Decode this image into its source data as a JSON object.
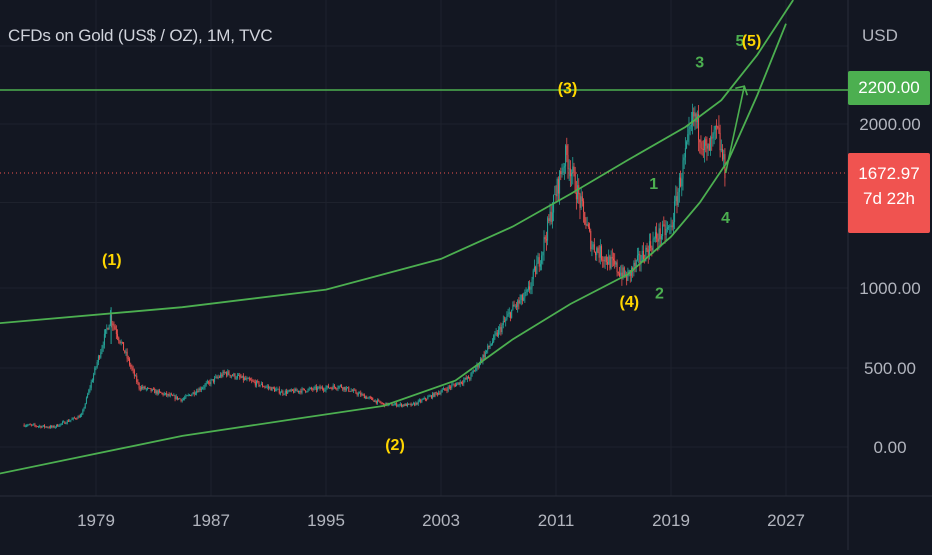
{
  "title": "CFDs on Gold (US$ / OZ), 1M, TVC",
  "currency": "USD",
  "colors": {
    "background": "#131722",
    "grid": "#1e222d",
    "axis_text": "#b2b5be",
    "up_candle": "#26a69a",
    "down_candle": "#ef5350",
    "trendline": "#4caf50",
    "wave_label_yellow": "#ffd600",
    "wave_label_green": "#4caf50",
    "current_price_line": "#f05350"
  },
  "chart_data": {
    "type": "candlestick",
    "title": "CFDs on Gold (US$ / OZ), 1M, TVC",
    "x_ticks": [
      "1979",
      "1987",
      "1995",
      "2003",
      "2011",
      "2019",
      "2027"
    ],
    "y_ticks": [
      "0.00",
      "500.00",
      "1000.00",
      "2000.00"
    ],
    "series_summary": {
      "x": [
        1974,
        1976,
        1978,
        1980,
        1982,
        1985,
        1988,
        1992,
        1996,
        1999,
        2001,
        2005,
        2008,
        2009,
        2010,
        2011.7,
        2013.5,
        2015.9,
        2018,
        2019,
        2020.6,
        2021.5,
        2022.2,
        2022.8
      ],
      "y": [
        140,
        125,
        200,
        820,
        380,
        300,
        470,
        345,
        385,
        270,
        265,
        440,
        870,
        960,
        1210,
        1800,
        1250,
        1060,
        1300,
        1350,
        2050,
        1800,
        1950,
        1672.97
      ]
    },
    "horizontal_level": {
      "value": "2200.00"
    },
    "current_price": {
      "value": "1672.97",
      "countdown": "7d 22h"
    },
    "wave_labels": [
      {
        "text": "(1)",
        "x": 1980.1,
        "y": 1135,
        "color": "yellow"
      },
      {
        "text": "(2)",
        "x": 1999.8,
        "y": -20,
        "color": "yellow"
      },
      {
        "text": "(3)",
        "x": 2011.8,
        "y": 2180,
        "color": "yellow"
      },
      {
        "text": "(4)",
        "x": 2016.1,
        "y": 880,
        "color": "yellow"
      },
      {
        "text": "1",
        "x": 2017.8,
        "y": 1580,
        "color": "green"
      },
      {
        "text": "2",
        "x": 2018.2,
        "y": 935,
        "color": "green"
      },
      {
        "text": "3",
        "x": 2021.0,
        "y": 2380,
        "color": "green"
      },
      {
        "text": "4",
        "x": 2022.8,
        "y": 1380,
        "color": "green"
      },
      {
        "text": "5",
        "x": 2023.8,
        "y": 2550,
        "color": "green"
      },
      {
        "text": "(5)",
        "x": 2024.6,
        "y": 2550,
        "color": "yellow"
      }
    ]
  }
}
